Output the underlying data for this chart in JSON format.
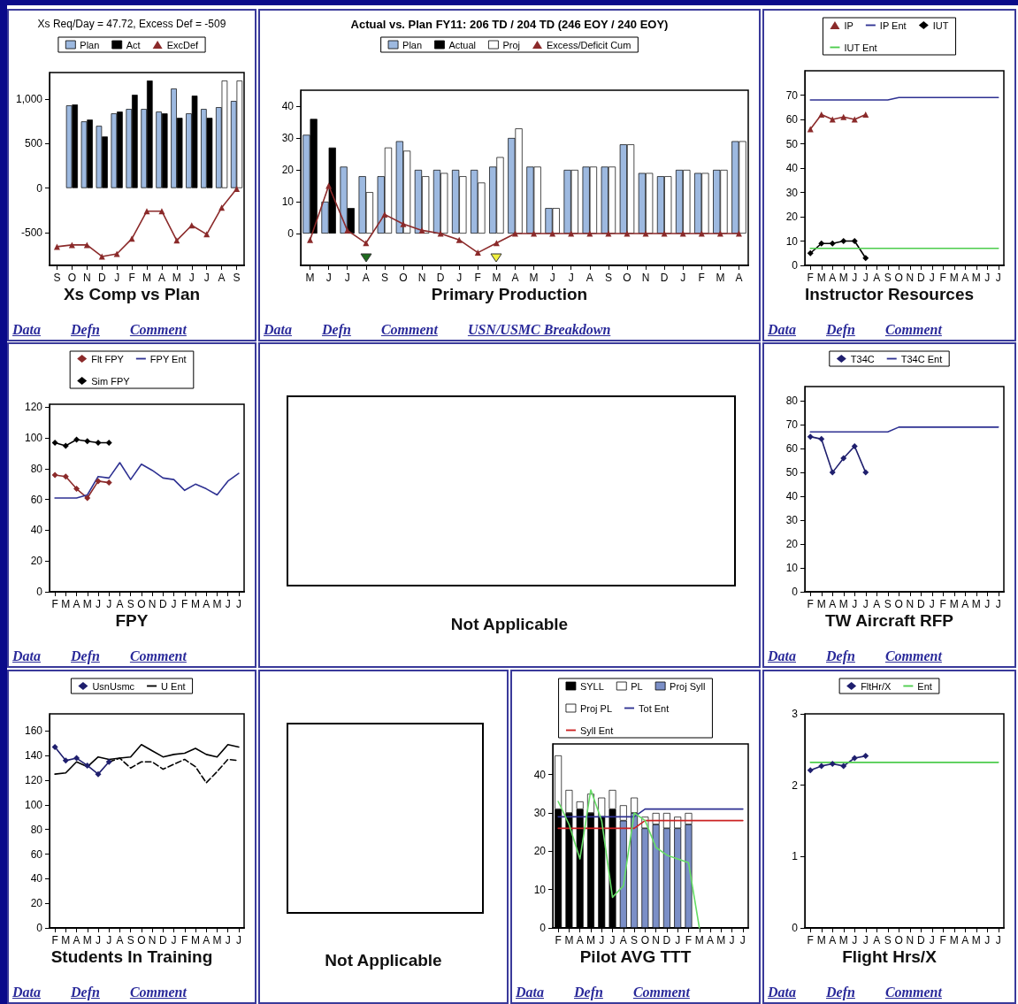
{
  "chart_data": [
    {
      "type": "bar",
      "subtitle": "Xs Req/Day = 47.72, Excess Def = -509",
      "title": "Xs Comp vs Plan",
      "legend": "top",
      "categories": [
        "S",
        "O",
        "N",
        "D",
        "J",
        "F",
        "M",
        "A",
        "M",
        "J",
        "J",
        "A",
        "S"
      ],
      "series": [
        {
          "name": "Plan",
          "color": "#9db9e0",
          "values": [
            null,
            930,
            750,
            700,
            840,
            890,
            890,
            860,
            1120,
            840,
            890,
            910,
            980
          ]
        },
        {
          "name": "Act",
          "color": "#000000",
          "colors": [
            "#000000",
            "#000000",
            "#000000",
            "#000000",
            "#000000",
            "#000000",
            "#000000",
            "#000000",
            "#000000",
            "#000000",
            "#000000",
            "#ffffff",
            "#ffffff"
          ],
          "values": [
            null,
            940,
            770,
            580,
            860,
            1050,
            1210,
            840,
            790,
            1040,
            790,
            1210,
            1210
          ]
        },
        {
          "name": "ExcDef",
          "type": "line",
          "marker": "triangle",
          "color": "#8b2a2a",
          "values": [
            -660,
            -640,
            -640,
            -770,
            -740,
            -570,
            -260,
            -260,
            -590,
            -420,
            -520,
            -220,
            -10
          ]
        }
      ],
      "ylim": [
        -870,
        1300
      ],
      "yticks": [
        -500,
        0,
        500,
        {
          "value": 1000,
          "label": "1,000"
        }
      ],
      "annotations": [
        "Data",
        "Defn",
        "Comment"
      ]
    },
    {
      "type": "bar",
      "subtitle": "Actual vs. Plan  FY11: 206 TD / 204 TD (246 EOY / 240 EOY)",
      "title": "Primary Production",
      "legend": "top",
      "categories": [
        "M",
        "J",
        "J",
        "A",
        "S",
        "O",
        "N",
        "D",
        "J",
        "F",
        "M",
        "A",
        "M",
        "J",
        "J",
        "A",
        "S",
        "O",
        "N",
        "D",
        "J",
        "F",
        "M",
        "A"
      ],
      "series": [
        {
          "name": "Plan",
          "color": "#9db9e0",
          "values": [
            31,
            10,
            21,
            18,
            18,
            29,
            20,
            20,
            20,
            20,
            21,
            30,
            21,
            8,
            20,
            21,
            21,
            28,
            19,
            18,
            20,
            19,
            20,
            29
          ]
        },
        {
          "name": "Actual",
          "color": "#000000",
          "values": [
            36,
            27,
            8,
            null,
            null,
            null,
            null,
            null,
            null,
            null,
            null,
            null,
            null,
            null,
            null,
            null,
            null,
            null,
            null,
            null,
            null,
            null,
            null,
            null
          ]
        },
        {
          "name": "Proj",
          "color": "#ffffff",
          "values": [
            null,
            null,
            null,
            13,
            27,
            26,
            18,
            19,
            18,
            16,
            24,
            33,
            21,
            8,
            20,
            21,
            21,
            28,
            19,
            18,
            20,
            19,
            20,
            29
          ]
        },
        {
          "name": "Excess/Deficit Cum",
          "type": "line",
          "marker": "triangle",
          "color": "#8b2a2a",
          "values": [
            -2,
            15,
            1,
            -3,
            6,
            3,
            1,
            0,
            -2,
            -6,
            -3,
            0,
            0,
            0,
            0,
            0,
            0,
            0,
            0,
            0,
            0,
            0,
            0,
            0
          ]
        }
      ],
      "ylim": [
        -10,
        45
      ],
      "yticks": [
        0,
        10,
        20,
        30,
        40
      ],
      "annotations": [
        "Data",
        "Defn",
        "Comment",
        "USN/USMC Breakdown"
      ]
    },
    {
      "type": "line",
      "title": "Instructor Resources",
      "legend": "top",
      "categories": [
        "F",
        "M",
        "A",
        "M",
        "J",
        "J",
        "A",
        "S",
        "O",
        "N",
        "D",
        "J",
        "F",
        "M",
        "A",
        "M",
        "J",
        "J"
      ],
      "series": [
        {
          "name": "IP",
          "marker": "triangle",
          "color": "#8b2a2a",
          "values": [
            56,
            62,
            60,
            61,
            60,
            62,
            null,
            null,
            null,
            null,
            null,
            null,
            null,
            null,
            null,
            null,
            null,
            null
          ]
        },
        {
          "name": "IP Ent",
          "color": "#2e3192",
          "values": [
            68,
            68,
            68,
            68,
            68,
            68,
            68,
            68,
            69,
            69,
            69,
            69,
            69,
            69,
            69,
            69,
            69,
            69
          ]
        },
        {
          "name": "IUT",
          "marker": "diamond",
          "color": "#000000",
          "values": [
            5,
            9,
            9,
            10,
            10,
            3,
            null,
            null,
            null,
            null,
            null,
            null,
            null,
            null,
            null,
            null,
            null,
            null
          ]
        },
        {
          "name": "IUT Ent",
          "color": "#4ccc4c",
          "values": [
            7,
            7,
            7,
            7,
            7,
            7,
            7,
            7,
            7,
            7,
            7,
            7,
            7,
            7,
            7,
            7,
            7,
            7
          ]
        }
      ],
      "ylim": [
        0,
        80
      ],
      "yticks": [
        0,
        10,
        20,
        30,
        40,
        50,
        60,
        70
      ],
      "annotations": [
        "Data",
        "Defn",
        "Comment"
      ]
    },
    {
      "type": "line",
      "title": "FPY",
      "legend": "top",
      "categories": [
        "F",
        "M",
        "A",
        "M",
        "J",
        "J",
        "A",
        "S",
        "O",
        "N",
        "D",
        "J",
        "F",
        "M",
        "A",
        "M",
        "J",
        "J"
      ],
      "series": [
        {
          "name": "Flt FPY",
          "marker": "diamond",
          "color": "#8b2a2a",
          "values": [
            76,
            75,
            67,
            61,
            72,
            71,
            null,
            null,
            null,
            null,
            null,
            null,
            null,
            null,
            null,
            null,
            null,
            null
          ]
        },
        {
          "name": "FPY Ent",
          "color": "#2e3192",
          "values": [
            61,
            61,
            61,
            63,
            75,
            74,
            84,
            73,
            83,
            79,
            74,
            73,
            66,
            70,
            67,
            63,
            72,
            77
          ]
        },
        {
          "name": "Sim FPY",
          "marker": "diamond",
          "color": "#000000",
          "values": [
            97,
            95,
            99,
            98,
            97,
            97,
            null,
            null,
            null,
            null,
            null,
            null,
            null,
            null,
            null,
            null,
            null,
            null
          ]
        }
      ],
      "ylim": [
        0,
        122
      ],
      "yticks": [
        0,
        20,
        40,
        60,
        80,
        100,
        120
      ],
      "annotations": [
        "Data",
        "Defn",
        "Comment"
      ]
    },
    {
      "type": "other",
      "title": "Not Applicable"
    },
    {
      "type": "line",
      "title": "TW Aircraft RFP",
      "legend": "top",
      "categories": [
        "F",
        "M",
        "A",
        "M",
        "J",
        "J",
        "A",
        "S",
        "O",
        "N",
        "D",
        "J",
        "F",
        "M",
        "A",
        "M",
        "J",
        "J"
      ],
      "series": [
        {
          "name": "T34C",
          "marker": "diamond",
          "color": "#1f1f6e",
          "values": [
            65,
            64,
            50,
            56,
            61,
            50,
            null,
            null,
            null,
            null,
            null,
            null,
            null,
            null,
            null,
            null,
            null,
            null
          ]
        },
        {
          "name": "T34C Ent",
          "color": "#2e3192",
          "values": [
            67,
            67,
            67,
            67,
            67,
            67,
            67,
            67,
            69,
            69,
            69,
            69,
            69,
            69,
            69,
            69,
            69,
            69
          ]
        }
      ],
      "ylim": [
        0,
        86
      ],
      "yticks": [
        0,
        10,
        20,
        30,
        40,
        50,
        60,
        70,
        80
      ],
      "annotations": [
        "Data",
        "Defn",
        "Comment"
      ]
    },
    {
      "type": "line",
      "title": "Students In Training",
      "legend": "top",
      "categories": [
        "F",
        "M",
        "A",
        "M",
        "J",
        "J",
        "A",
        "S",
        "O",
        "N",
        "D",
        "J",
        "F",
        "M",
        "A",
        "M",
        "J",
        "J"
      ],
      "series": [
        {
          "name": "UsnUsmc",
          "marker": "diamond",
          "color": "#1f1f6e",
          "values": [
            147,
            136,
            138,
            132,
            125,
            135,
            null,
            null,
            null,
            null,
            null,
            null,
            null,
            null,
            null,
            null,
            null,
            null
          ]
        },
        {
          "name": "U Ent",
          "color": "#000000",
          "values": [
            125,
            126,
            135,
            131,
            139,
            137,
            138,
            139,
            149,
            144,
            139,
            141,
            142,
            146,
            141,
            139,
            149,
            147
          ]
        },
        {
          "color": "#000000",
          "line_style": "dashed",
          "values": [
            null,
            null,
            null,
            null,
            null,
            135,
            138,
            130,
            135,
            135,
            129,
            133,
            137,
            131,
            118,
            127,
            137,
            136
          ]
        }
      ],
      "ylim": [
        0,
        174
      ],
      "yticks": [
        0,
        20,
        40,
        60,
        80,
        100,
        120,
        140,
        160
      ],
      "annotations": [
        "Data",
        "Defn",
        "Comment"
      ]
    },
    {
      "type": "other",
      "title": "Not Applicable"
    },
    {
      "type": "bar",
      "stacked": true,
      "title": "Pilot AVG TTT",
      "legend": "top",
      "categories": [
        "F",
        "M",
        "A",
        "M",
        "J",
        "J",
        "A",
        "S",
        "O",
        "N",
        "D",
        "J",
        "F",
        "M",
        "A",
        "M",
        "J",
        "J"
      ],
      "series": [
        {
          "name": "SYLL",
          "color": "#000000",
          "values": [
            31,
            30,
            31,
            30,
            29,
            31,
            null,
            null,
            null,
            null,
            null,
            null,
            null,
            null,
            null,
            null,
            null,
            null
          ]
        },
        {
          "name": "PL",
          "color": "#ffffff",
          "values": [
            14,
            6,
            2,
            5,
            5,
            5,
            null,
            null,
            null,
            null,
            null,
            null,
            null,
            null,
            null,
            null,
            null,
            null
          ]
        },
        {
          "name": "Proj Syll",
          "color": "#7b8fc7",
          "values": [
            null,
            null,
            null,
            null,
            null,
            null,
            28,
            30,
            26,
            27,
            26,
            26,
            27,
            null,
            null,
            null,
            null,
            null
          ]
        },
        {
          "name": "Proj PL",
          "color": "#ffffff",
          "values": [
            null,
            null,
            null,
            null,
            null,
            null,
            4,
            4,
            3,
            3,
            4,
            3,
            3,
            null,
            null,
            null,
            null,
            null
          ]
        },
        {
          "name": "Tot Ent",
          "type": "line",
          "color": "#2e3192",
          "values": [
            29,
            29,
            29,
            29,
            29,
            29,
            29,
            29,
            31,
            31,
            31,
            31,
            31,
            31,
            31,
            31,
            31,
            31
          ]
        },
        {
          "name": "Syll Ent",
          "type": "line",
          "color": "#cc2222",
          "values": [
            26,
            26,
            26,
            26,
            26,
            26,
            26,
            26,
            28,
            28,
            28,
            28,
            28,
            28,
            28,
            28,
            28,
            28
          ]
        },
        {
          "type": "line",
          "color": "#66dd66",
          "values": [
            33,
            27,
            18,
            36,
            28,
            8,
            11,
            30,
            28,
            21,
            19,
            18,
            17,
            0,
            null,
            null,
            null,
            null
          ]
        }
      ],
      "ylim": [
        0,
        48
      ],
      "yticks": [
        0,
        10,
        20,
        30,
        40
      ],
      "annotations": [
        "Data",
        "Defn",
        "Comment"
      ]
    },
    {
      "type": "line",
      "title": "Flight Hrs/X",
      "legend": "top",
      "categories": [
        "F",
        "M",
        "A",
        "M",
        "J",
        "J",
        "A",
        "S",
        "O",
        "N",
        "D",
        "J",
        "F",
        "M",
        "A",
        "M",
        "J",
        "J"
      ],
      "series": [
        {
          "name": "FltHr/X",
          "marker": "diamond",
          "color": "#1f1f6e",
          "values": [
            2.21,
            2.27,
            2.3,
            2.27,
            2.38,
            2.41,
            null,
            null,
            null,
            null,
            null,
            null,
            null,
            null,
            null,
            null,
            null,
            null
          ]
        },
        {
          "name": "Ent",
          "color": "#4ccc4c",
          "values": [
            2.32,
            2.32,
            2.32,
            2.32,
            2.32,
            2.32,
            2.32,
            2.32,
            2.32,
            2.32,
            2.32,
            2.32,
            2.32,
            2.32,
            2.32,
            2.32,
            2.32,
            2.32
          ]
        }
      ],
      "ylim": [
        0,
        3
      ],
      "yticks": [
        0,
        1,
        2,
        3
      ],
      "annotations": [
        "Data",
        "Defn",
        "Comment"
      ]
    }
  ]
}
